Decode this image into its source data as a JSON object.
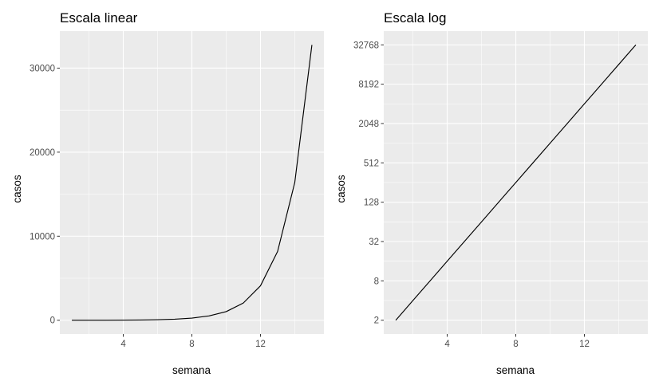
{
  "chart_data": [
    {
      "type": "line",
      "title": "Escala linear",
      "xlabel": "semana",
      "ylabel": "casos",
      "x": [
        1,
        2,
        3,
        4,
        5,
        6,
        7,
        8,
        9,
        10,
        11,
        12,
        13,
        14,
        15
      ],
      "series": [
        {
          "values": [
            2,
            4,
            8,
            16,
            32,
            64,
            128,
            256,
            512,
            1024,
            2048,
            4096,
            8192,
            16384,
            32768
          ]
        }
      ],
      "xlim": [
        0.3,
        15.7
      ],
      "ylim": [
        -1637,
        34407
      ],
      "y_scale": "linear",
      "xticks": [
        4,
        8,
        12
      ],
      "xtick_labels": [
        "4",
        "8",
        "12"
      ],
      "yticks": [
        0,
        10000,
        20000,
        30000
      ],
      "ytick_labels": [
        "0",
        "10000",
        "20000",
        "30000"
      ],
      "grid": true,
      "colors": {
        "panel": "#ebebeb",
        "grid_major": "#ffffff",
        "line": "#000000",
        "tick_label": "#4d4d4d",
        "tick": "#333333"
      }
    },
    {
      "type": "line",
      "title": "Escala log",
      "xlabel": "semana",
      "ylabel": "casos",
      "x": [
        1,
        2,
        3,
        4,
        5,
        6,
        7,
        8,
        9,
        10,
        11,
        12,
        13,
        14,
        15
      ],
      "series": [
        {
          "values": [
            2,
            4,
            8,
            16,
            32,
            64,
            128,
            256,
            512,
            1024,
            2048,
            4096,
            8192,
            16384,
            32768
          ]
        }
      ],
      "xlim": [
        0.3,
        15.7
      ],
      "ylim": [
        1.23,
        53224
      ],
      "y_scale": "log2",
      "xticks": [
        4,
        8,
        12
      ],
      "xtick_labels": [
        "4",
        "8",
        "12"
      ],
      "yticks": [
        2,
        8,
        32,
        128,
        512,
        2048,
        8192,
        32768
      ],
      "ytick_labels": [
        "2",
        "8",
        "32",
        "128",
        "512",
        "2048",
        "8192",
        "32768"
      ],
      "grid": true,
      "colors": {
        "panel": "#ebebeb",
        "grid_major": "#ffffff",
        "line": "#000000",
        "tick_label": "#4d4d4d",
        "tick": "#333333"
      }
    }
  ]
}
